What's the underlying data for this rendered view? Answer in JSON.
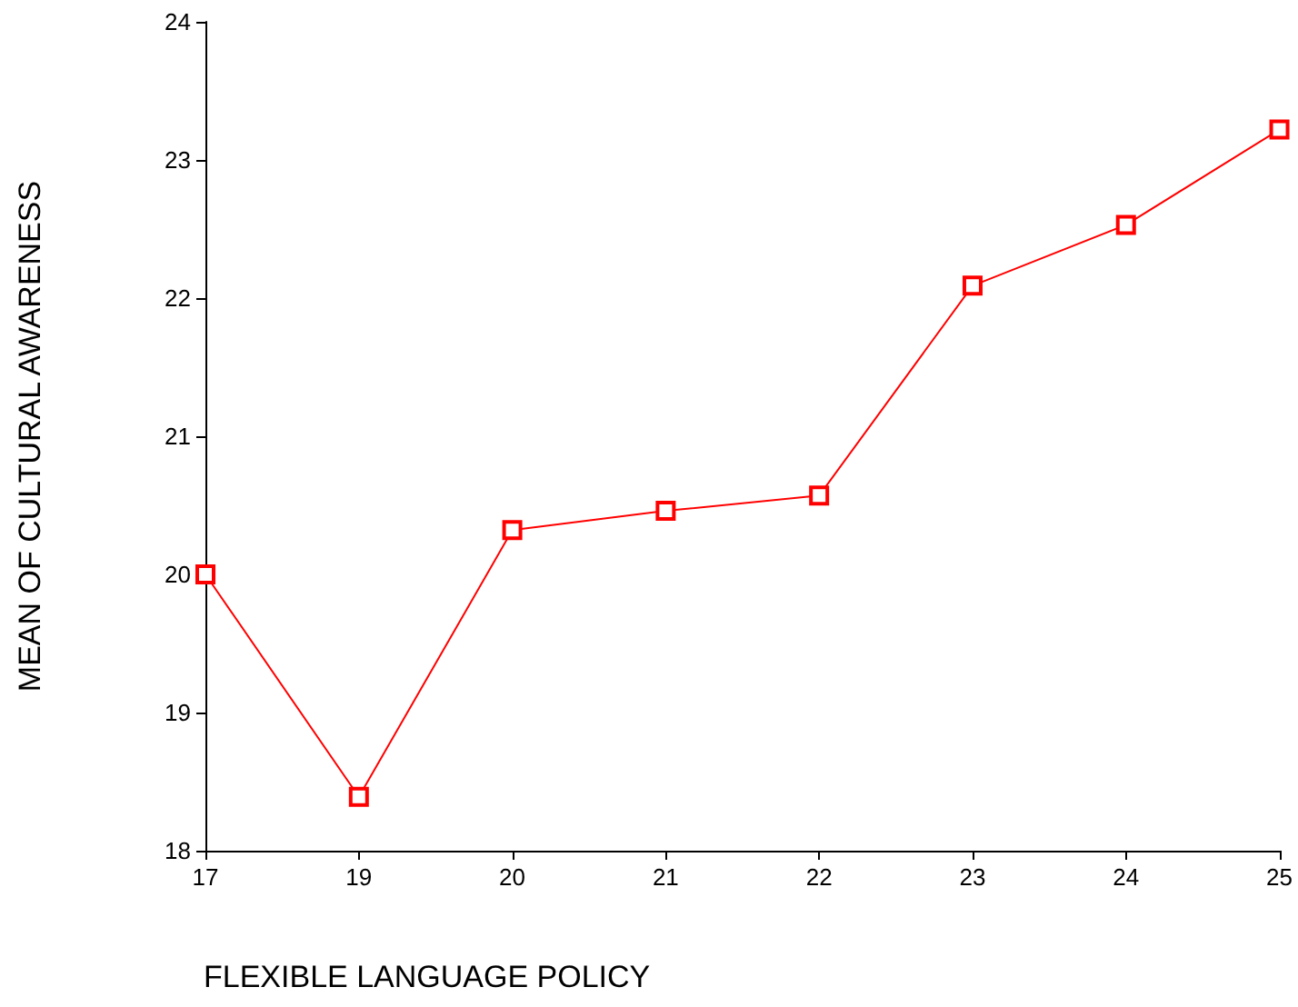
{
  "chart_data": {
    "type": "line",
    "xlabel": "FLEXIBLE LANGUAGE POLICY",
    "ylabel": "MEAN OF CULTURAL AWARENESS",
    "categories": [
      "17",
      "19",
      "20",
      "21",
      "22",
      "23",
      "24",
      "25"
    ],
    "series": [
      {
        "color": "#ff0000",
        "values": [
          20.0,
          18.39,
          20.32,
          20.46,
          20.57,
          22.09,
          22.53,
          23.22
        ]
      }
    ],
    "ylim": [
      18,
      24
    ],
    "yticks": [
      18,
      19,
      20,
      21,
      22,
      23,
      24
    ],
    "grid": false,
    "marker": "square",
    "line_style": "solid"
  }
}
